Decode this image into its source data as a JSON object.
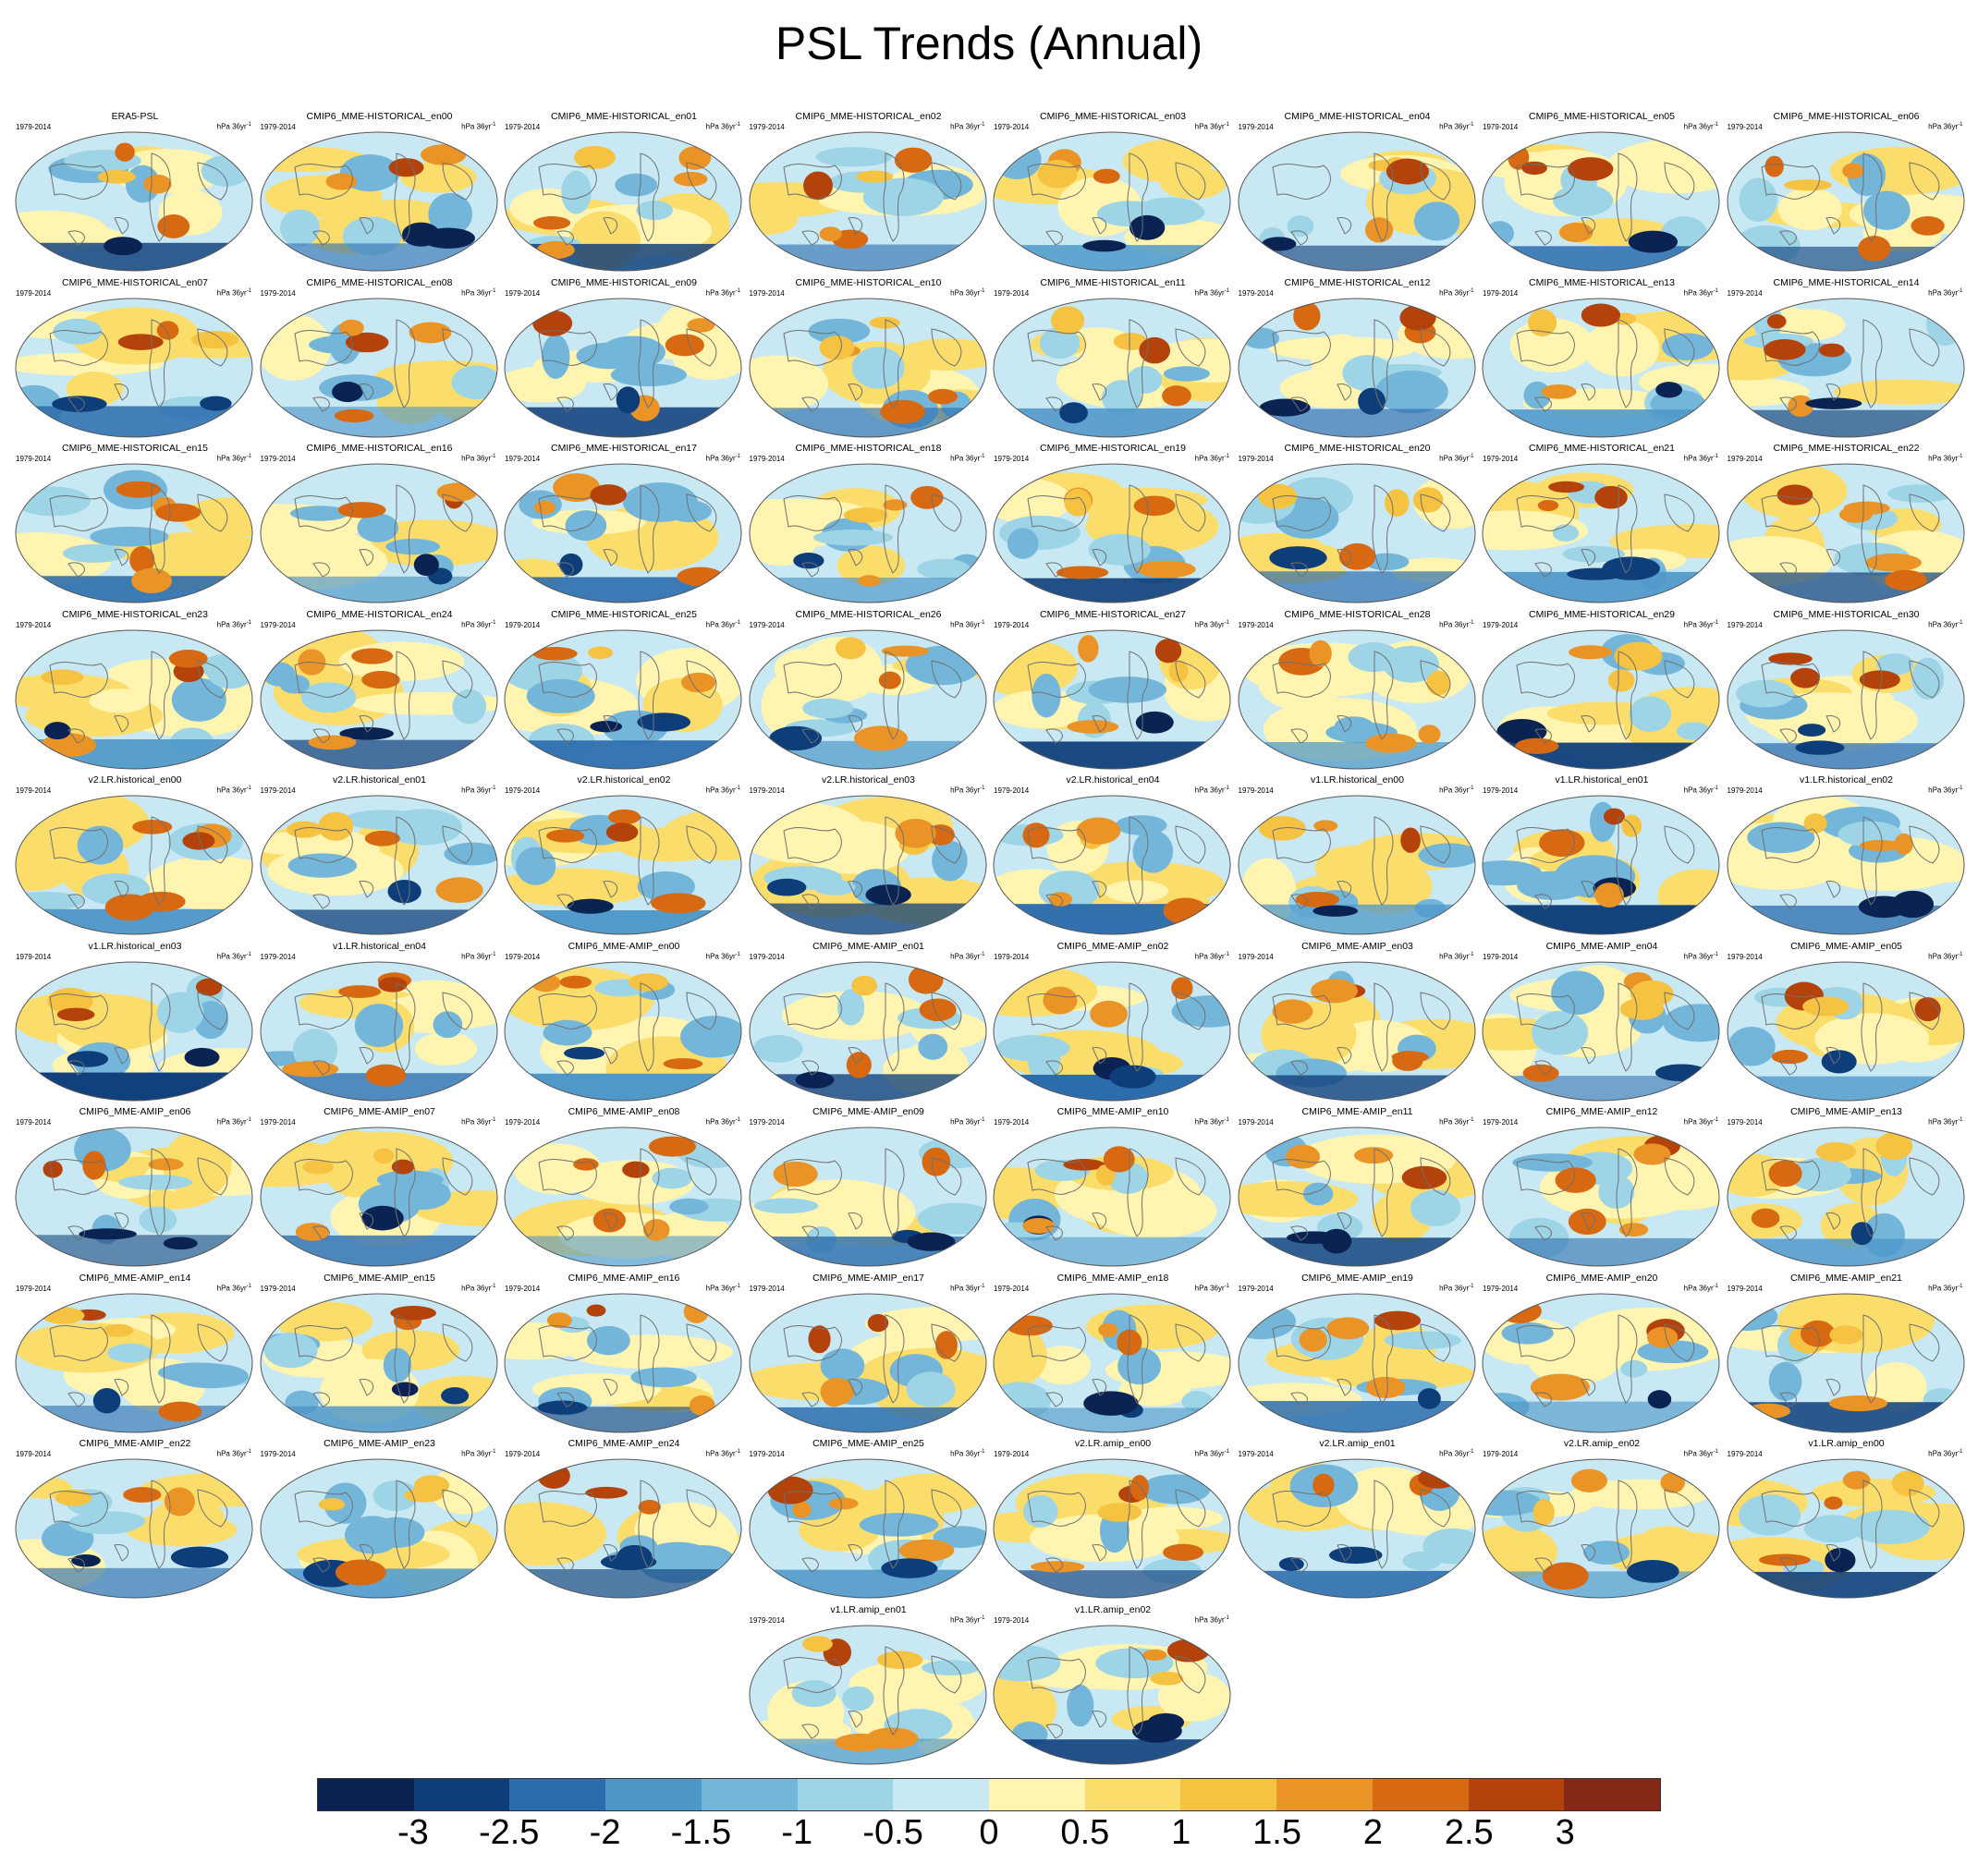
{
  "chart_data": {
    "type": "heatmap",
    "title": "PSL Trends (Annual)",
    "variable": "PSL",
    "period": "1979-2014",
    "units": "hPa 36yr",
    "units_exponent": "-1",
    "colorbar": {
      "colors": [
        "#0b2352",
        "#0e3e7a",
        "#2b6cad",
        "#4e97c9",
        "#74b6da",
        "#9dd4e6",
        "#c8e9f4",
        "#fff4b0",
        "#fbdd6c",
        "#f5c242",
        "#ea9326",
        "#d66912",
        "#b4420b",
        "#862817"
      ],
      "tick_labels": [
        "-3",
        "-2.5",
        "-2",
        "-1.5",
        "-1",
        "-0.5",
        "0",
        "0.5",
        "1",
        "1.5",
        "2",
        "2.5",
        "3"
      ],
      "range": [
        -3.5,
        3.5
      ],
      "orientation": "horizontal"
    },
    "panels": [
      "ERA5-PSL",
      "CMIP6_MME-HISTORICAL_en00",
      "CMIP6_MME-HISTORICAL_en01",
      "CMIP6_MME-HISTORICAL_en02",
      "CMIP6_MME-HISTORICAL_en03",
      "CMIP6_MME-HISTORICAL_en04",
      "CMIP6_MME-HISTORICAL_en05",
      "CMIP6_MME-HISTORICAL_en06",
      "CMIP6_MME-HISTORICAL_en07",
      "CMIP6_MME-HISTORICAL_en08",
      "CMIP6_MME-HISTORICAL_en09",
      "CMIP6_MME-HISTORICAL_en10",
      "CMIP6_MME-HISTORICAL_en11",
      "CMIP6_MME-HISTORICAL_en12",
      "CMIP6_MME-HISTORICAL_en13",
      "CMIP6_MME-HISTORICAL_en14",
      "CMIP6_MME-HISTORICAL_en15",
      "CMIP6_MME-HISTORICAL_en16",
      "CMIP6_MME-HISTORICAL_en17",
      "CMIP6_MME-HISTORICAL_en18",
      "CMIP6_MME-HISTORICAL_en19",
      "CMIP6_MME-HISTORICAL_en20",
      "CMIP6_MME-HISTORICAL_en21",
      "CMIP6_MME-HISTORICAL_en22",
      "CMIP6_MME-HISTORICAL_en23",
      "CMIP6_MME-HISTORICAL_en24",
      "CMIP6_MME-HISTORICAL_en25",
      "CMIP6_MME-HISTORICAL_en26",
      "CMIP6_MME-HISTORICAL_en27",
      "CMIP6_MME-HISTORICAL_en28",
      "CMIP6_MME-HISTORICAL_en29",
      "CMIP6_MME-HISTORICAL_en30",
      "v2.LR.historical_en00",
      "v2.LR.historical_en01",
      "v2.LR.historical_en02",
      "v2.LR.historical_en03",
      "v2.LR.historical_en04",
      "v1.LR.historical_en00",
      "v1.LR.historical_en01",
      "v1.LR.historical_en02",
      "v1.LR.historical_en03",
      "v1.LR.historical_en04",
      "CMIP6_MME-AMIP_en00",
      "CMIP6_MME-AMIP_en01",
      "CMIP6_MME-AMIP_en02",
      "CMIP6_MME-AMIP_en03",
      "CMIP6_MME-AMIP_en04",
      "CMIP6_MME-AMIP_en05",
      "CMIP6_MME-AMIP_en06",
      "CMIP6_MME-AMIP_en07",
      "CMIP6_MME-AMIP_en08",
      "CMIP6_MME-AMIP_en09",
      "CMIP6_MME-AMIP_en10",
      "CMIP6_MME-AMIP_en11",
      "CMIP6_MME-AMIP_en12",
      "CMIP6_MME-AMIP_en13",
      "CMIP6_MME-AMIP_en14",
      "CMIP6_MME-AMIP_en15",
      "CMIP6_MME-AMIP_en16",
      "CMIP6_MME-AMIP_en17",
      "CMIP6_MME-AMIP_en18",
      "CMIP6_MME-AMIP_en19",
      "CMIP6_MME-AMIP_en20",
      "CMIP6_MME-AMIP_en21",
      "CMIP6_MME-AMIP_en22",
      "CMIP6_MME-AMIP_en23",
      "CMIP6_MME-AMIP_en24",
      "CMIP6_MME-AMIP_en25",
      "v2.LR.amip_en00",
      "v2.LR.amip_en01",
      "v2.LR.amip_en02",
      "v1.LR.amip_en00",
      "v1.LR.amip_en01",
      "v1.LR.amip_en02"
    ]
  }
}
